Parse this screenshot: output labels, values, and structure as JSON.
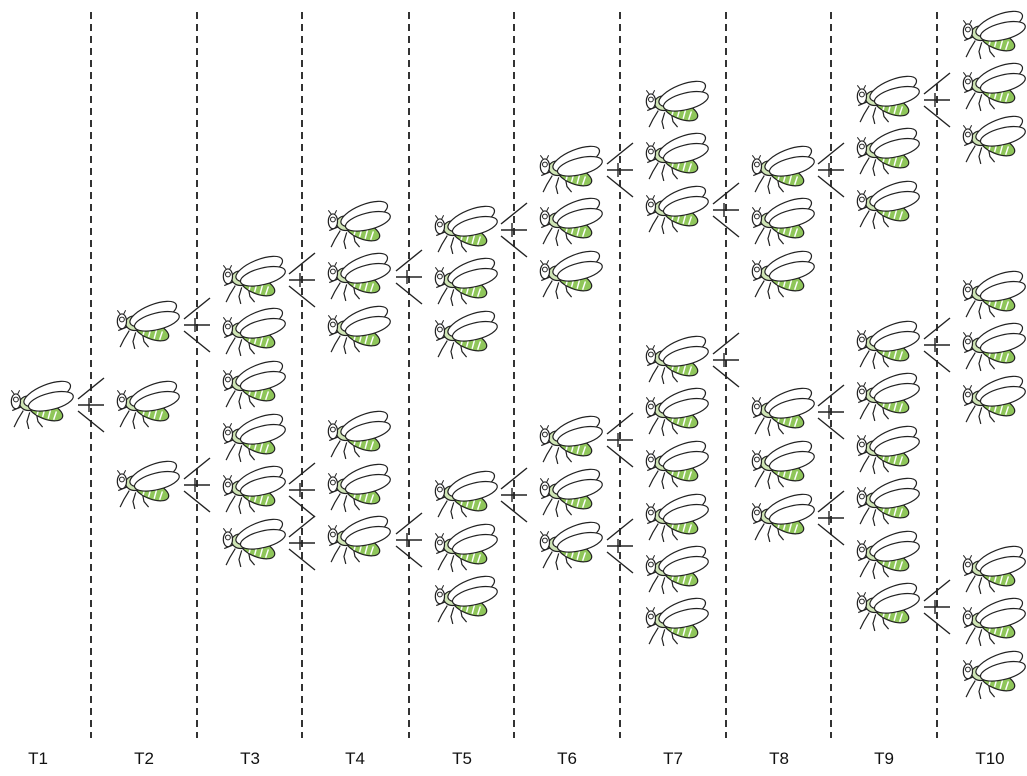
{
  "colors": {
    "line": "#222222",
    "divider": "#333333",
    "wing": "#ffffff",
    "abdomen_green": "#8fc65a",
    "thorax_green": "#cfe5b5",
    "label": "#111111"
  },
  "icons": {
    "individual": "fly-icon",
    "connector": "branch-connector"
  },
  "generations": [
    {
      "label": "T1",
      "count": 1
    },
    {
      "label": "T2",
      "count": 3
    },
    {
      "label": "T3",
      "count": 6
    },
    {
      "label": "T4",
      "count": 6
    },
    {
      "label": "T5",
      "count": 6
    },
    {
      "label": "T6",
      "count": 6
    },
    {
      "label": "T7",
      "count": 9
    },
    {
      "label": "T8",
      "count": 6
    },
    {
      "label": "T9",
      "count": 9
    },
    {
      "label": "T10",
      "count": 9
    }
  ]
}
